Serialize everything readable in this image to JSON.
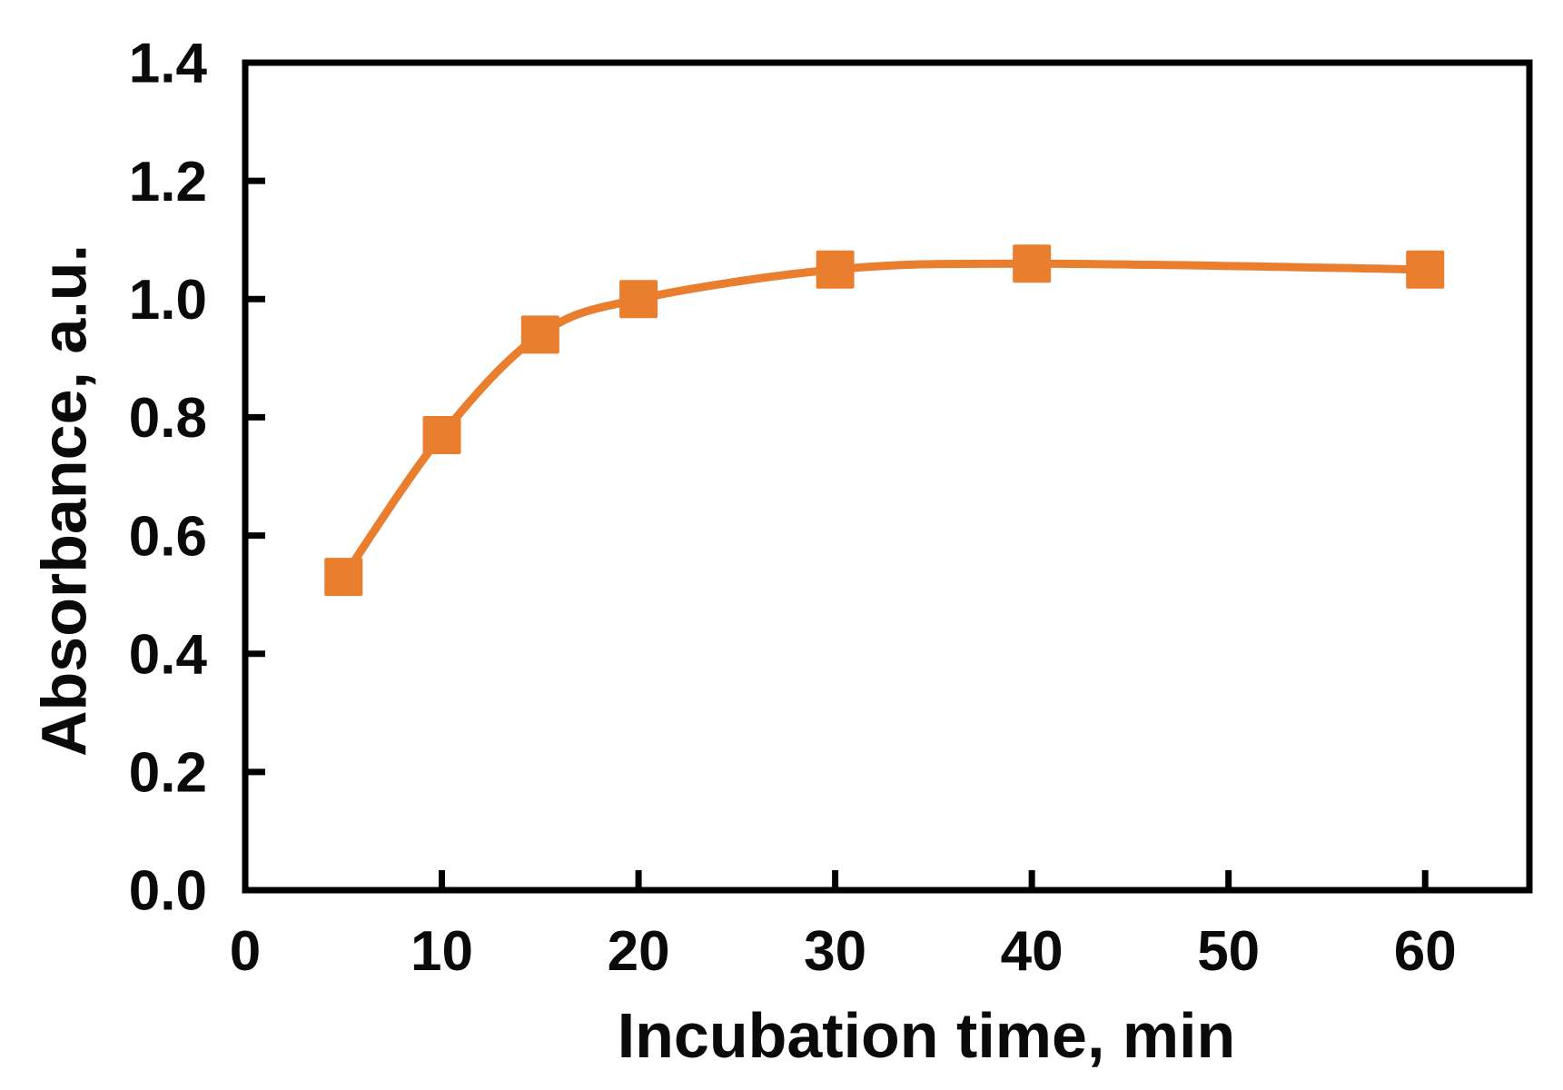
{
  "figure": {
    "background": "#ffffff",
    "axis_color": "#000000",
    "text_color": "#0a0a0a"
  },
  "chart_data": {
    "type": "line",
    "title": "",
    "xlabel": "Incubation time, min",
    "ylabel": "Absorbance, a.u.",
    "x": [
      5,
      10,
      15,
      20,
      30,
      40,
      60
    ],
    "y": [
      0.53,
      0.77,
      0.94,
      1.0,
      1.05,
      1.06,
      1.05
    ],
    "xlim": [
      0,
      65.3
    ],
    "ylim": [
      0,
      1.4
    ],
    "x_ticks": [
      0,
      10,
      20,
      30,
      40,
      50,
      60
    ],
    "x_tick_labels": [
      "0",
      "10",
      "20",
      "30",
      "40",
      "50",
      "60"
    ],
    "y_ticks": [
      0,
      0.2,
      0.4,
      0.6,
      0.8,
      1.0,
      1.2,
      1.4
    ],
    "y_tick_labels": [
      "0.0",
      "0.2",
      "0.4",
      "0.6",
      "0.8",
      "1.0",
      "1.2",
      "1.4"
    ],
    "grid": false,
    "legend_position": "none",
    "series": [
      {
        "name": "absorbance",
        "color": "#E87E2E",
        "marker": "square",
        "smoothed": true
      }
    ]
  }
}
